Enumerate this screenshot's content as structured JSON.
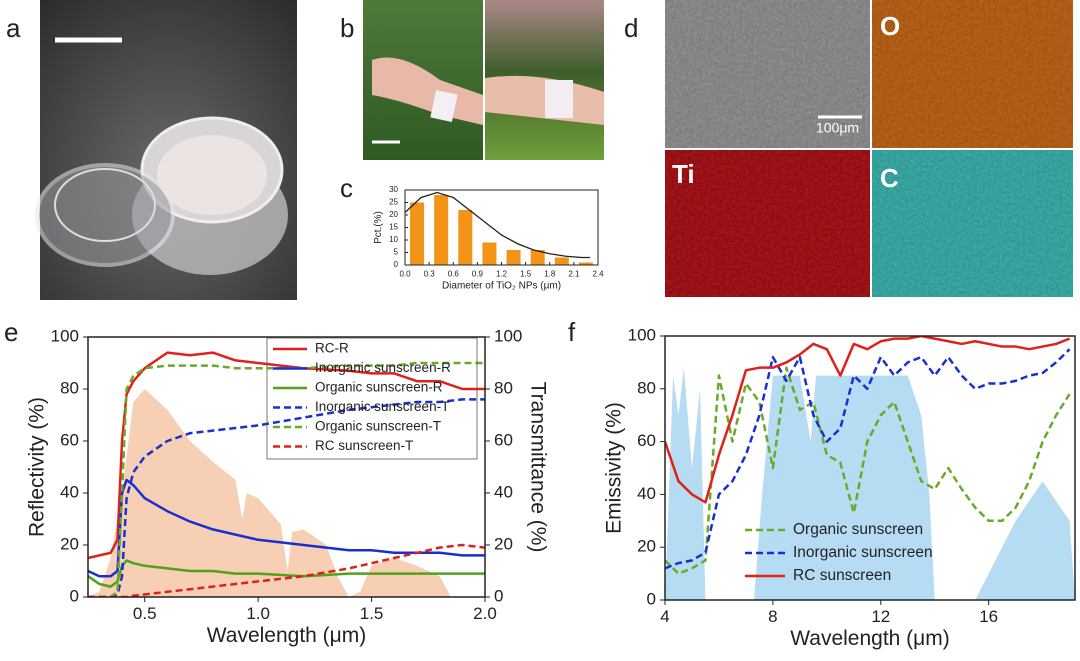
{
  "panel_labels": [
    "a",
    "b",
    "c",
    "d",
    "e",
    "f"
  ],
  "eds_maps": [
    "O",
    "Ti",
    "C"
  ],
  "scale_bar": "100μm",
  "chart_data": [
    {
      "type": "bar",
      "x_label": "Diameter of TiO₂ NPs (μm)",
      "y_label": "Pct.(%)",
      "x": [
        0.15,
        0.45,
        0.75,
        1.05,
        1.35,
        1.65,
        1.95,
        2.25
      ],
      "values": [
        25,
        28,
        22,
        9,
        6,
        6,
        3,
        1
      ],
      "color": "#f39317",
      "curve": {
        "color": "#222222",
        "x": [
          0,
          0.2,
          0.4,
          0.6,
          0.8,
          1.0,
          1.2,
          1.4,
          1.6,
          1.8,
          2.0,
          2.2,
          2.3
        ],
        "values": [
          21,
          27,
          29,
          27,
          22,
          17,
          12,
          8.5,
          6,
          4.5,
          3.5,
          3,
          3
        ]
      },
      "xlim": [
        0,
        2.4
      ],
      "xticks": [
        {
          "value": 0,
          "label": "0.0"
        },
        0.3,
        0.6,
        0.9,
        1.2,
        1.5,
        1.8,
        2.1,
        2.4
      ],
      "ylim": [
        0,
        30
      ],
      "yticks": [
        0,
        5,
        10,
        15,
        20,
        25,
        30
      ]
    },
    {
      "type": "line",
      "x_label": "Wavelength (μm)",
      "y_label": "Reflectivity (%)",
      "y2_label": "Transmittance (%)",
      "x": [
        0.25,
        0.3,
        0.35,
        0.38,
        0.4,
        0.42,
        0.45,
        0.5,
        0.6,
        0.7,
        0.8,
        0.9,
        1.0,
        1.2,
        1.4,
        1.5,
        1.6,
        1.7,
        1.8,
        1.9,
        2.0
      ],
      "series": [
        {
          "name": "RC-R",
          "color": "#e0201b",
          "style": "solid",
          "values": [
            15,
            16,
            17,
            22,
            60,
            78,
            83,
            88,
            94,
            93,
            94,
            91,
            90,
            88,
            87,
            86,
            86,
            83,
            83,
            80,
            80
          ]
        },
        {
          "name": "Inorganic sunscreen-R",
          "color": "#1a2fd0",
          "style": "solid",
          "values": [
            10,
            8,
            8,
            10,
            40,
            45,
            43,
            38,
            33,
            29,
            26,
            24,
            22,
            20,
            18,
            18,
            17,
            17,
            17,
            16,
            16
          ]
        },
        {
          "name": "Organic sunscreen-R",
          "color": "#4fa41b",
          "style": "solid",
          "values": [
            8,
            5,
            4,
            6,
            12,
            14,
            13,
            12,
            11,
            10,
            10,
            9,
            9,
            8,
            9,
            9,
            9,
            9,
            9,
            9,
            9
          ]
        },
        {
          "name": "Inorganic sunscreen-T",
          "color": "#1a2fd0",
          "style": "dashed",
          "axis": "y2",
          "values": [
            0,
            0,
            0,
            1,
            8,
            38,
            48,
            54,
            60,
            63,
            64,
            65,
            66,
            69,
            72,
            73,
            74,
            75,
            75,
            76,
            76
          ]
        },
        {
          "name": "Organic sunscreen-T",
          "color": "#6aaa2a",
          "style": "dashed",
          "axis": "y2",
          "values": [
            0,
            0,
            0,
            2,
            40,
            80,
            85,
            88,
            89,
            89,
            89,
            88,
            88,
            88,
            89,
            89,
            89,
            90,
            90,
            90,
            90
          ]
        },
        {
          "name": "RC sunscreen-T",
          "color": "#e0201b",
          "style": "dashed",
          "axis": "y2",
          "values": [
            0,
            0,
            0,
            0,
            0,
            0,
            0.5,
            1,
            2,
            3,
            4,
            5,
            6,
            8,
            11,
            13,
            15,
            17,
            19,
            20,
            19
          ]
        }
      ],
      "background_area": {
        "color": "#f6cfb4",
        "x": [
          0.25,
          0.3,
          0.35,
          0.4,
          0.45,
          0.5,
          0.6,
          0.7,
          0.8,
          0.9,
          0.93,
          0.95,
          1.0,
          1.1,
          1.13,
          1.15,
          1.2,
          1.3,
          1.35,
          1.4,
          1.45,
          1.5,
          1.6,
          1.7,
          1.8,
          1.85,
          1.9,
          2.0
        ],
        "values": [
          0,
          2,
          15,
          40,
          75,
          80,
          72,
          60,
          52,
          45,
          30,
          40,
          38,
          28,
          10,
          25,
          26,
          20,
          8,
          0,
          2,
          12,
          15,
          12,
          8,
          0,
          0,
          0
        ]
      },
      "xlim": [
        0.25,
        2.0
      ],
      "xticks": [
        0.5,
        {
          "value": 1.0,
          "label": "1.0"
        },
        1.5,
        {
          "value": 2.0,
          "label": "2.0"
        }
      ],
      "ylim": [
        0,
        100
      ],
      "yticks": [
        0,
        20,
        40,
        60,
        80,
        100
      ],
      "y2lim": [
        0,
        100
      ],
      "y2ticks": [
        0,
        20,
        40,
        60,
        80,
        100
      ],
      "legend": "right",
      "legend_box": true
    },
    {
      "type": "line",
      "x_label": "Wavelength (μm)",
      "y_label": "Emissivity (%)",
      "x": [
        4,
        4.5,
        5,
        5.5,
        6,
        6.5,
        7,
        7.5,
        8,
        8.5,
        9,
        9.5,
        10,
        10.5,
        11,
        11.5,
        12,
        12.5,
        13,
        13.5,
        14,
        14.5,
        15,
        15.5,
        16,
        16.5,
        17,
        17.5,
        18,
        18.5,
        19
      ],
      "series": [
        {
          "name": "Organic sunscreen",
          "color": "#6aaa2a",
          "style": "dashed",
          "values": [
            15,
            10,
            12,
            15,
            85,
            60,
            82,
            75,
            50,
            88,
            72,
            75,
            55,
            52,
            33,
            60,
            70,
            75,
            60,
            45,
            42,
            50,
            42,
            35,
            30,
            30,
            35,
            45,
            60,
            70,
            78
          ]
        },
        {
          "name": "Inorganic sunscreen",
          "color": "#1a2fd0",
          "style": "dashed",
          "values": [
            12,
            14,
            15,
            18,
            40,
            45,
            55,
            70,
            92,
            83,
            92,
            70,
            60,
            65,
            85,
            80,
            92,
            85,
            90,
            92,
            85,
            92,
            85,
            80,
            82,
            82,
            83,
            85,
            86,
            90,
            95
          ]
        },
        {
          "name": "RC sunscreen",
          "color": "#e0201b",
          "style": "solid",
          "values": [
            60,
            45,
            40,
            37,
            55,
            70,
            87,
            88,
            88,
            90,
            93,
            97,
            95,
            85,
            97,
            95,
            98,
            99,
            99,
            100,
            99,
            98,
            97,
            98,
            97,
            96,
            96,
            95,
            96,
            97,
            99
          ]
        }
      ],
      "background_area": {
        "color": "#b6dcf3",
        "x": [
          4,
          4.3,
          4.5,
          4.7,
          5,
          5.3,
          5.5,
          7.3,
          7.6,
          8,
          9,
          9.4,
          9.6,
          10,
          11,
          12,
          13,
          13.5,
          13.8,
          14,
          15.5,
          16,
          17,
          18,
          19,
          19.2
        ],
        "values": [
          0,
          85,
          70,
          88,
          50,
          80,
          0,
          0,
          40,
          85,
          85,
          60,
          85,
          85,
          85,
          85,
          85,
          70,
          40,
          0,
          0,
          10,
          30,
          45,
          30,
          0
        ]
      },
      "xlim": [
        4,
        19.2
      ],
      "xticks": [
        4,
        8,
        12,
        16
      ],
      "ylim": [
        0,
        100
      ],
      "yticks": [
        0,
        20,
        40,
        60,
        80,
        100
      ],
      "legend": "bottom",
      "legend_box": false
    }
  ]
}
